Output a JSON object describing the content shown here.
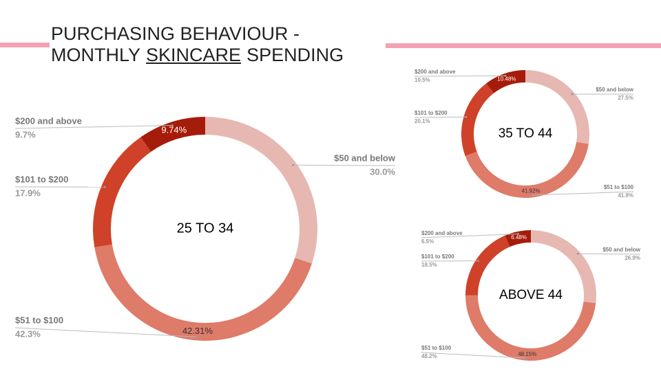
{
  "slide": {
    "title_line1": "PURCHASING BEHAVIOUR -",
    "title_line2": [
      "MONTHLY",
      "SKINCARE",
      "SPENDING"
    ]
  },
  "chart_data": [
    {
      "type": "donut",
      "title": "25 TO 34",
      "categories": [
        "$50 and below",
        "$51 to $100",
        "$101 to $200",
        "$200 and above"
      ],
      "values": [
        30.0,
        42.31,
        17.9,
        9.74
      ],
      "value_labels": [
        "30.0%",
        "42.3%",
        "17.9%",
        "9.7%"
      ],
      "inner_labels": [
        null,
        "42.31%",
        null,
        "9.74%"
      ],
      "colors": [
        "#e6b8b1",
        "#df7b69",
        "#cf4129",
        "#a61c0a"
      ]
    },
    {
      "type": "donut",
      "title": "35 TO 44",
      "categories": [
        "$50 and below",
        "$51 to $100",
        "$101 to $200",
        "$200 and above"
      ],
      "values": [
        27.5,
        41.92,
        20.1,
        10.48
      ],
      "value_labels": [
        "27.5%",
        "41.9%",
        "20.1%",
        "10.5%"
      ],
      "inner_labels": [
        null,
        "41.92%",
        null,
        "10.48%"
      ],
      "colors": [
        "#e6b8b1",
        "#df7b69",
        "#cf4129",
        "#a61c0a"
      ]
    },
    {
      "type": "donut",
      "title": "ABOVE 44",
      "categories": [
        "$50 and below",
        "$51 to $100",
        "$101 to $200",
        "$200 and above"
      ],
      "values": [
        26.9,
        48.15,
        18.5,
        6.48
      ],
      "value_labels": [
        "26.9%",
        "48.2%",
        "18.5%",
        "6.5%"
      ],
      "inner_labels": [
        null,
        "48.15%",
        null,
        "6.48%"
      ],
      "colors": [
        "#e6b8b1",
        "#df7b69",
        "#cf4129",
        "#a61c0a"
      ]
    }
  ]
}
